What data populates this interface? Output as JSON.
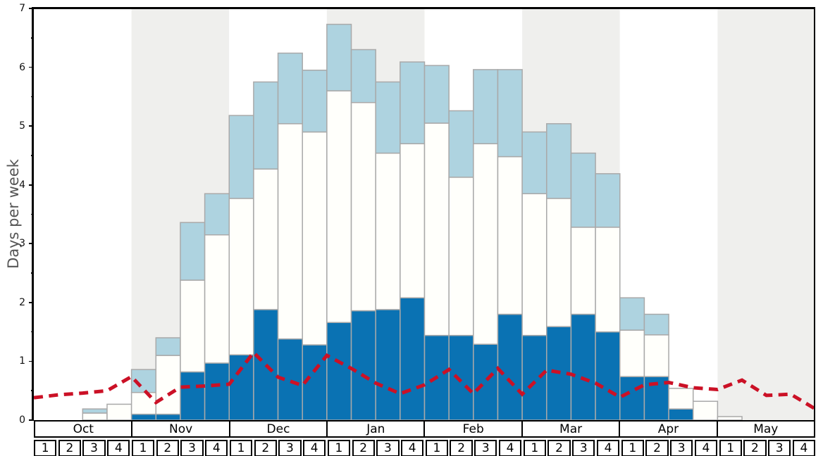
{
  "y_axis": {
    "label": "Days per week",
    "tick_labels": [
      "0",
      "1",
      "2",
      "3",
      "4",
      "5",
      "6",
      "7"
    ],
    "max": 7
  },
  "x_axis": {
    "months": [
      "Oct",
      "Nov",
      "Dec",
      "Jan",
      "Feb",
      "Mar",
      "Apr",
      "May"
    ],
    "week_labels": [
      "1",
      "2",
      "3",
      "4"
    ]
  },
  "colors": {
    "dark_blue": "#0a72b3",
    "white_bar": "#fffffb",
    "light_blue": "#aed3e0",
    "bar_border": "#a9a9a9",
    "band_white": "#ffffff",
    "band_gray": "#efefed",
    "red_line": "#cb1126",
    "axis_black": "#000000",
    "y_title_gray": "#555555"
  },
  "chart_data": {
    "type": "bar",
    "stacked": true,
    "title": "",
    "xlabel": "",
    "ylabel": "Days per week",
    "ylim": [
      0,
      7
    ],
    "grid": false,
    "legend": "none",
    "categories": [
      "Oct-1",
      "Oct-2",
      "Oct-3",
      "Oct-4",
      "Nov-1",
      "Nov-2",
      "Nov-3",
      "Nov-4",
      "Dec-1",
      "Dec-2",
      "Dec-3",
      "Dec-4",
      "Jan-1",
      "Jan-2",
      "Jan-3",
      "Jan-4",
      "Feb-1",
      "Feb-2",
      "Feb-3",
      "Feb-4",
      "Mar-1",
      "Mar-2",
      "Mar-3",
      "Mar-4",
      "Apr-1",
      "Apr-2",
      "Apr-3",
      "Apr-4",
      "May-1",
      "May-2",
      "May-3",
      "May-4"
    ],
    "series": [
      {
        "name": "dark-blue-bottom-segment",
        "color": "#0a72b3",
        "cumulative_top": [
          0,
          0,
          0,
          0,
          0.1,
          0.1,
          0.82,
          0.97,
          1.11,
          1.88,
          1.38,
          1.28,
          1.66,
          1.86,
          1.88,
          2.08,
          1.44,
          1.44,
          1.29,
          1.8,
          1.44,
          1.59,
          1.8,
          1.5,
          0.74,
          0.74,
          0.19,
          0,
          0,
          0,
          0,
          0
        ]
      },
      {
        "name": "white-middle-segment",
        "color": "#fffffb",
        "cumulative_top": [
          0,
          0,
          0.12,
          0.27,
          0.47,
          1.1,
          2.38,
          3.15,
          3.77,
          4.27,
          5.04,
          4.9,
          5.6,
          5.4,
          4.54,
          4.7,
          5.05,
          4.13,
          4.7,
          4.48,
          3.85,
          3.77,
          3.28,
          3.28,
          1.53,
          1.45,
          0.54,
          0.32,
          0.06,
          0,
          0,
          0
        ]
      },
      {
        "name": "light-blue-top-segment",
        "color": "#aed3e0",
        "cumulative_top": [
          0,
          0,
          0.19,
          0.27,
          0.86,
          1.4,
          3.36,
          3.85,
          5.18,
          5.75,
          6.24,
          5.95,
          6.73,
          6.3,
          5.75,
          6.09,
          6.03,
          5.26,
          5.96,
          5.96,
          4.9,
          5.04,
          4.54,
          4.19,
          2.08,
          1.8,
          0.54,
          0.32,
          0.06,
          0,
          0,
          0
        ]
      }
    ],
    "line": {
      "name": "red-dashed-line",
      "color": "#cb1126",
      "style": "dashed",
      "x_positions": "week-boundaries (33 evenly spaced points, Oct start to May end)",
      "values": [
        0.38,
        0.43,
        0.46,
        0.5,
        0.74,
        0.3,
        0.56,
        0.58,
        0.61,
        1.15,
        0.73,
        0.59,
        1.1,
        0.88,
        0.63,
        0.45,
        0.6,
        0.86,
        0.45,
        0.88,
        0.44,
        0.85,
        0.78,
        0.63,
        0.39,
        0.6,
        0.64,
        0.55,
        0.52,
        0.68,
        0.42,
        0.44,
        0.19
      ]
    },
    "background_bands": {
      "per_month_alternating": [
        "#ffffff",
        "#efefed"
      ],
      "gray_months": [
        "Nov",
        "Jan",
        "Mar",
        "May"
      ]
    }
  }
}
